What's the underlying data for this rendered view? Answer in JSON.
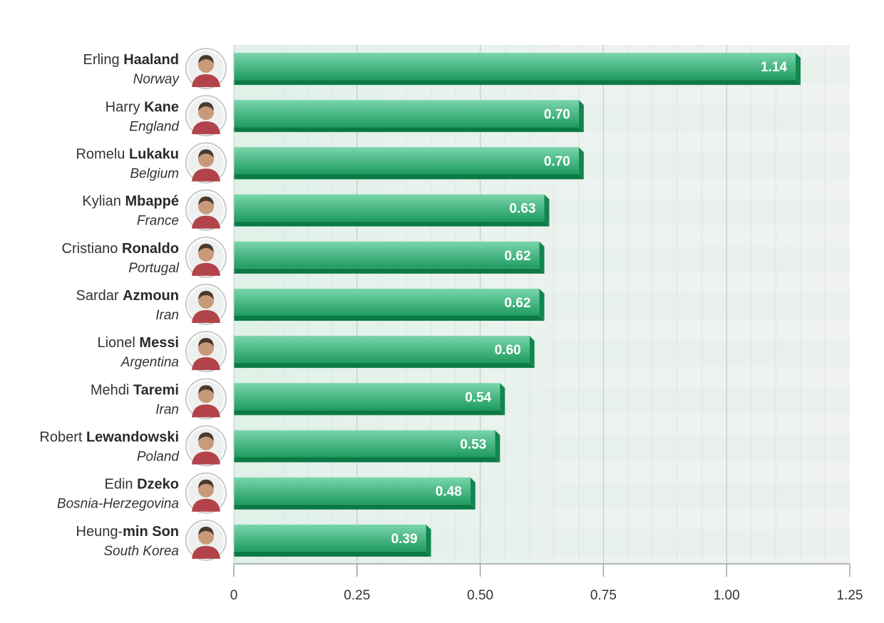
{
  "colors": {
    "bar_top": "#6fd1a6",
    "bar_bottom": "#1f9d62",
    "bar_shadow": "#0b7a44",
    "band_light": "#f3f7f5",
    "band_dark": "#e6eeea",
    "grid": "#d2dcd7",
    "axis": "#9aa4a0"
  },
  "chart_data": {
    "type": "bar",
    "orientation": "horizontal",
    "title": "",
    "xlabel": "",
    "ylabel": "",
    "xlim": [
      0,
      1.25
    ],
    "x_ticks": [
      0,
      0.25,
      0.5,
      0.75,
      1.0,
      1.25
    ],
    "x_tick_labels": [
      "0",
      "0.25",
      "0.50",
      "0.75",
      "1.00",
      "1.25"
    ],
    "grid": true,
    "categories": [
      {
        "first": "Erling",
        "last": "Haaland",
        "country": "Norway"
      },
      {
        "first": "Harry",
        "last": "Kane",
        "country": "England"
      },
      {
        "first": "Romelu",
        "last": "Lukaku",
        "country": "Belgium"
      },
      {
        "first": "Kylian",
        "last": "Mbappé",
        "country": "France"
      },
      {
        "first": "Cristiano",
        "last": "Ronaldo",
        "country": "Portugal"
      },
      {
        "first": "Sardar",
        "last": "Azmoun",
        "country": "Iran"
      },
      {
        "first": "Lionel",
        "last": "Messi",
        "country": "Argentina"
      },
      {
        "first": "Mehdi",
        "last": "Taremi",
        "country": "Iran"
      },
      {
        "first": "Robert",
        "last": "Lewandowski",
        "country": "Poland"
      },
      {
        "first": "Edin",
        "last": "Dzeko",
        "country": "Bosnia-Herzegovina"
      },
      {
        "first": "Heung-",
        "last": "min Son",
        "country": "South Korea"
      }
    ],
    "values": [
      1.14,
      0.7,
      0.7,
      0.63,
      0.62,
      0.62,
      0.6,
      0.54,
      0.53,
      0.48,
      0.39
    ],
    "value_labels": [
      "1.14",
      "0.70",
      "0.70",
      "0.63",
      "0.62",
      "0.62",
      "0.60",
      "0.54",
      "0.53",
      "0.48",
      "0.39"
    ]
  }
}
